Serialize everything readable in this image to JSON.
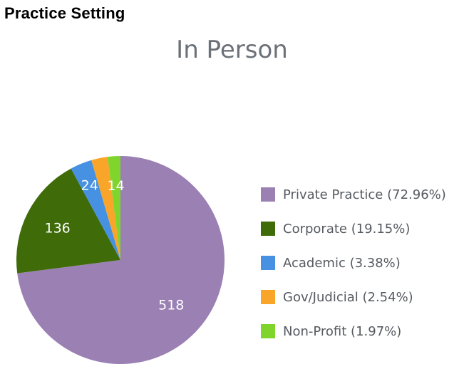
{
  "section_heading": "Practice Setting",
  "chart_data": {
    "type": "pie",
    "title": "In Person",
    "slices": [
      {
        "label": "Private Practice",
        "value": 518,
        "percent_text": "72.96%",
        "color": "#9b80b4",
        "data_label": "518"
      },
      {
        "label": "Corporate",
        "value": 136,
        "percent_text": "19.15%",
        "color": "#3f6b09",
        "data_label": "136"
      },
      {
        "label": "Academic",
        "value": 24,
        "percent_text": "3.38%",
        "color": "#4691e2",
        "data_label": "24"
      },
      {
        "label": "Gov/Judicial",
        "value": 18,
        "percent_text": "2.54%",
        "color": "#f9a52a",
        "data_label": ""
      },
      {
        "label": "Non-Profit",
        "value": 14,
        "percent_text": "1.97%",
        "color": "#7fd52c",
        "data_label": "14"
      }
    ],
    "legend_position": "right"
  }
}
